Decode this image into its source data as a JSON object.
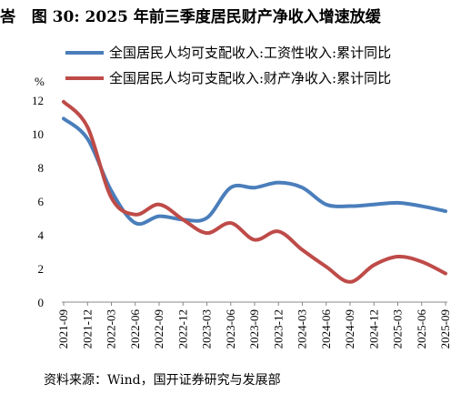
{
  "title": {
    "prefix": "峇",
    "figure": "图 30:",
    "text": "2025 年前三季度居民财产净收入增速放缓"
  },
  "source": "资料来源：Wind，国开证券研究与发展部",
  "chart_data": {
    "type": "line",
    "ylabel": "%",
    "ylim": [
      0,
      12
    ],
    "yticks": [
      0,
      2,
      4,
      6,
      8,
      10,
      12
    ],
    "grid": false,
    "legend_position": "top-right",
    "categories": [
      "2021-09",
      "2021-12",
      "2022-03",
      "2022-06",
      "2022-09",
      "2022-12",
      "2023-03",
      "2023-06",
      "2023-09",
      "2023-12",
      "2024-03",
      "2024-06",
      "2024-09",
      "2024-12",
      "2025-03",
      "2025-06",
      "2025-09"
    ],
    "series": [
      {
        "name": "全国居民人均可支配收入:工资性收入:累计同比",
        "color": "#4a7ebb",
        "values": [
          10.9,
          9.7,
          6.6,
          4.7,
          5.1,
          4.9,
          5.0,
          6.8,
          6.8,
          7.1,
          6.8,
          5.8,
          5.7,
          5.8,
          5.9,
          5.7,
          5.4
        ]
      },
      {
        "name": "全国居民人均可支配收入:财产净收入:累计同比",
        "color": "#be4b48",
        "values": [
          11.9,
          10.4,
          6.2,
          5.2,
          5.8,
          4.9,
          4.1,
          4.7,
          3.7,
          4.2,
          3.1,
          2.1,
          1.2,
          2.2,
          2.7,
          2.4,
          1.7
        ]
      }
    ]
  }
}
